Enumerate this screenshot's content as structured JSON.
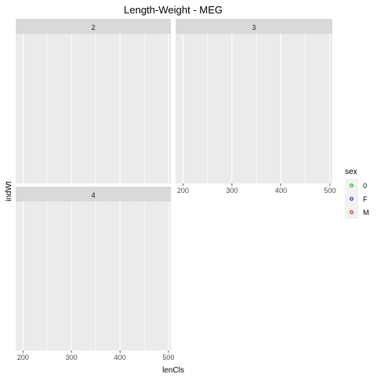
{
  "chart_data": {
    "type": "scatter",
    "title": "Length-Weight - MEG",
    "xlabel": "lenCls",
    "ylabel": "indWt",
    "xlim": [
      185,
      505
    ],
    "x_ticks": [
      200,
      300,
      400,
      500
    ],
    "x_tick_labels": [
      "200",
      "300",
      "400",
      "500"
    ],
    "grid": true,
    "facets": [
      {
        "label": "2",
        "points": []
      },
      {
        "label": "3",
        "points": []
      },
      {
        "label": "4",
        "points": []
      }
    ],
    "legend": {
      "title": "sex",
      "placement": "right",
      "entries": [
        {
          "label": "0",
          "color": "#00a600"
        },
        {
          "label": "F",
          "color": "#0000cc"
        },
        {
          "label": "M",
          "color": "#cc0000"
        }
      ]
    },
    "colors": {
      "panel_bg": "#ebebeb",
      "strip_bg": "#d9d9d9",
      "grid_major": "#ffffff",
      "legend_key_bg": "#f2f2f2"
    }
  }
}
